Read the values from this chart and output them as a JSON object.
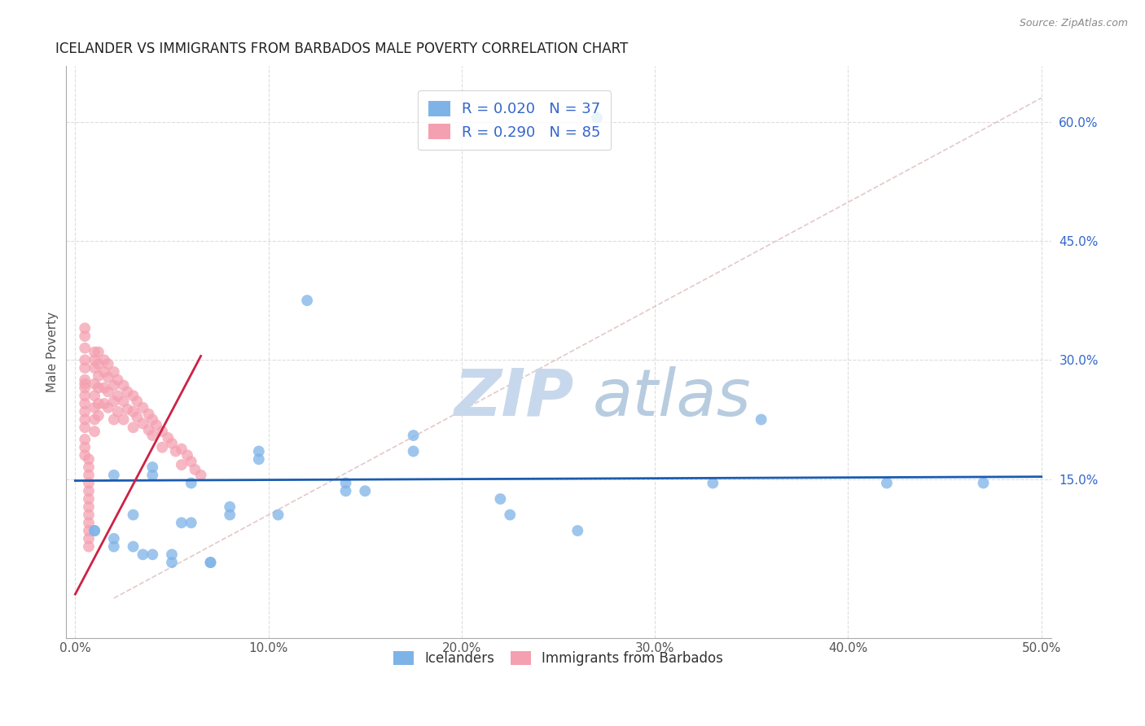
{
  "title": "ICELANDER VS IMMIGRANTS FROM BARBADOS MALE POVERTY CORRELATION CHART",
  "source": "Source: ZipAtlas.com",
  "xlabel_ticks": [
    "0.0%",
    "10.0%",
    "20.0%",
    "30.0%",
    "40.0%",
    "50.0%"
  ],
  "xlabel_vals": [
    0.0,
    0.1,
    0.2,
    0.3,
    0.4,
    0.5
  ],
  "ylabel_ticks": [
    "15.0%",
    "30.0%",
    "45.0%",
    "60.0%"
  ],
  "ylabel_vals": [
    0.15,
    0.3,
    0.45,
    0.6
  ],
  "xlim": [
    -0.005,
    0.505
  ],
  "ylim": [
    -0.05,
    0.67
  ],
  "ylabel": "Male Poverty",
  "legend_label1": "Icelanders",
  "legend_label2": "Immigrants from Barbados",
  "R1": 0.02,
  "N1": 37,
  "R2": 0.29,
  "N2": 85,
  "color_blue": "#7EB3E8",
  "color_pink": "#F4A0B0",
  "color_line_blue": "#1A5CB0",
  "color_line_pink": "#CC2244",
  "color_legend_text": "#3366CC",
  "color_grid": "#DDDDDD",
  "icelanders_x": [
    0.27,
    0.12,
    0.175,
    0.175,
    0.095,
    0.095,
    0.04,
    0.355,
    0.02,
    0.04,
    0.06,
    0.14,
    0.15,
    0.22,
    0.33,
    0.42,
    0.08,
    0.08,
    0.105,
    0.03,
    0.055,
    0.06,
    0.01,
    0.01,
    0.02,
    0.02,
    0.03,
    0.035,
    0.04,
    0.05,
    0.05,
    0.07,
    0.07,
    0.225,
    0.26,
    0.14,
    0.47
  ],
  "icelanders_y": [
    0.605,
    0.375,
    0.205,
    0.185,
    0.185,
    0.175,
    0.165,
    0.225,
    0.155,
    0.155,
    0.145,
    0.135,
    0.135,
    0.125,
    0.145,
    0.145,
    0.115,
    0.105,
    0.105,
    0.105,
    0.095,
    0.095,
    0.085,
    0.085,
    0.075,
    0.065,
    0.065,
    0.055,
    0.055,
    0.055,
    0.045,
    0.045,
    0.045,
    0.105,
    0.085,
    0.145,
    0.145
  ],
  "barbados_x": [
    0.005,
    0.005,
    0.005,
    0.005,
    0.005,
    0.005,
    0.005,
    0.005,
    0.005,
    0.005,
    0.005,
    0.005,
    0.005,
    0.005,
    0.005,
    0.005,
    0.007,
    0.007,
    0.007,
    0.007,
    0.007,
    0.007,
    0.007,
    0.007,
    0.007,
    0.007,
    0.007,
    0.007,
    0.01,
    0.01,
    0.01,
    0.01,
    0.01,
    0.01,
    0.01,
    0.01,
    0.012,
    0.012,
    0.012,
    0.012,
    0.012,
    0.012,
    0.015,
    0.015,
    0.015,
    0.015,
    0.017,
    0.017,
    0.017,
    0.017,
    0.02,
    0.02,
    0.02,
    0.02,
    0.022,
    0.022,
    0.022,
    0.025,
    0.025,
    0.025,
    0.027,
    0.027,
    0.03,
    0.03,
    0.03,
    0.032,
    0.032,
    0.035,
    0.035,
    0.038,
    0.038,
    0.04,
    0.04,
    0.042,
    0.045,
    0.045,
    0.048,
    0.05,
    0.052,
    0.055,
    0.055,
    0.058,
    0.06,
    0.062,
    0.065
  ],
  "barbados_y": [
    0.34,
    0.33,
    0.315,
    0.3,
    0.29,
    0.275,
    0.27,
    0.265,
    0.255,
    0.245,
    0.235,
    0.225,
    0.215,
    0.2,
    0.19,
    0.18,
    0.175,
    0.165,
    0.155,
    0.145,
    0.135,
    0.125,
    0.115,
    0.105,
    0.095,
    0.085,
    0.075,
    0.065,
    0.31,
    0.3,
    0.29,
    0.27,
    0.255,
    0.24,
    0.225,
    0.21,
    0.31,
    0.295,
    0.28,
    0.265,
    0.245,
    0.23,
    0.3,
    0.285,
    0.265,
    0.245,
    0.295,
    0.278,
    0.26,
    0.24,
    0.285,
    0.268,
    0.248,
    0.225,
    0.275,
    0.255,
    0.235,
    0.268,
    0.248,
    0.225,
    0.26,
    0.238,
    0.255,
    0.235,
    0.215,
    0.248,
    0.228,
    0.24,
    0.22,
    0.232,
    0.212,
    0.225,
    0.205,
    0.218,
    0.21,
    0.19,
    0.202,
    0.195,
    0.185,
    0.188,
    0.168,
    0.18,
    0.172,
    0.162,
    0.155
  ],
  "blue_regline_x": [
    0.0,
    0.5
  ],
  "blue_regline_y": [
    0.148,
    0.153
  ],
  "pink_regline_x": [
    0.0,
    0.065
  ],
  "pink_regline_y": [
    0.005,
    0.305
  ]
}
